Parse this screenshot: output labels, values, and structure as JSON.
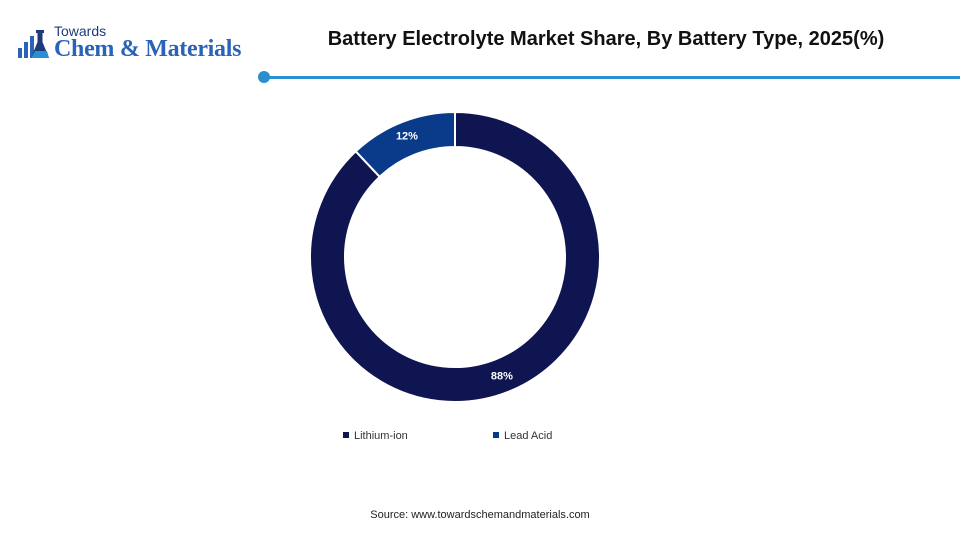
{
  "brand": {
    "name_top": "Towards",
    "name_bottom": "Chem & Materials",
    "color": "#2a63b8"
  },
  "header": {
    "title": "Battery Electrolyte Market Share, By Battery Type, 2025(%)",
    "accent_color": "#2a8fd0"
  },
  "chart_data": {
    "type": "pie",
    "variant": "donut",
    "title": "Battery Electrolyte Market Share, By Battery Type, 2025(%)",
    "slices": [
      {
        "label": "Lithium-ion",
        "value": 88,
        "data_label": "88%",
        "color": "#0e1550"
      },
      {
        "label": "Lead Acid",
        "value": 12,
        "data_label": "12%",
        "color": "#0a3a8a"
      }
    ],
    "legend": {
      "position": "bottom"
    }
  },
  "footer": {
    "source": "Source: www.towardschemandmaterials.com"
  }
}
